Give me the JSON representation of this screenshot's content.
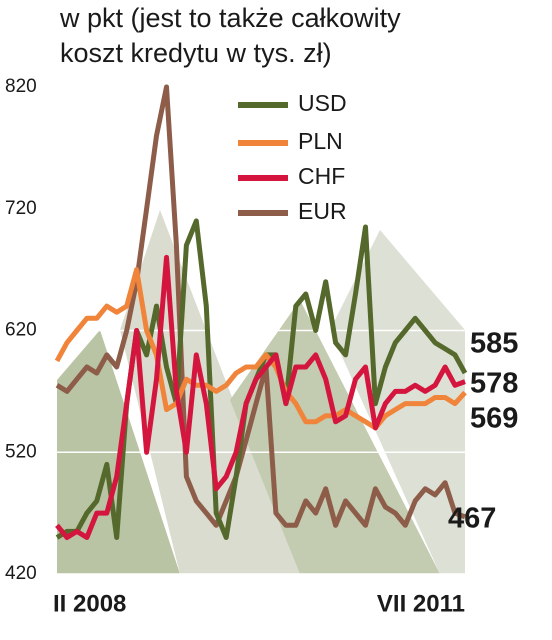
{
  "chart_data": {
    "type": "line",
    "title": [
      "w pkt (jest to także całkowity",
      "koszt kredytu w tys. zł)"
    ],
    "categories": [
      "II 2008",
      null,
      null,
      null,
      null,
      null,
      null,
      null,
      null,
      null,
      null,
      null,
      null,
      null,
      null,
      null,
      null,
      null,
      null,
      null,
      null,
      null,
      null,
      null,
      null,
      null,
      null,
      null,
      null,
      null,
      null,
      null,
      null,
      null,
      null,
      null,
      null,
      null,
      null,
      null,
      null,
      "VII 2011"
    ],
    "series": [
      {
        "name": "USD",
        "color": "#55692c",
        "values": [
          450,
          455,
          455,
          470,
          480,
          510,
          450,
          560,
          620,
          600,
          640,
          590,
          560,
          690,
          710,
          640,
          470,
          450,
          500,
          560,
          580,
          600,
          600,
          560,
          640,
          650,
          620,
          660,
          610,
          600,
          650,
          705,
          560,
          590,
          610,
          620,
          630,
          620,
          610,
          605,
          600,
          585
        ]
      },
      {
        "name": "PLN",
        "color": "#f0843a",
        "values": [
          595,
          610,
          620,
          630,
          630,
          640,
          635,
          640,
          670,
          620,
          600,
          555,
          560,
          580,
          575,
          575,
          570,
          575,
          585,
          590,
          590,
          600,
          590,
          570,
          560,
          545,
          545,
          550,
          550,
          555,
          550,
          545,
          540,
          550,
          555,
          560,
          560,
          560,
          565,
          565,
          560,
          569
        ]
      },
      {
        "name": "CHF",
        "color": "#d4163f",
        "values": [
          460,
          450,
          455,
          450,
          470,
          470,
          500,
          560,
          620,
          520,
          580,
          680,
          570,
          520,
          600,
          560,
          490,
          500,
          520,
          560,
          580,
          590,
          600,
          560,
          590,
          590,
          600,
          580,
          545,
          550,
          580,
          590,
          540,
          560,
          570,
          570,
          575,
          570,
          575,
          590,
          575,
          578
        ]
      },
      {
        "name": "EUR",
        "color": "#8d5d4a",
        "values": [
          575,
          570,
          580,
          590,
          585,
          600,
          590,
          620,
          660,
          720,
          780,
          820,
          690,
          500,
          480,
          470,
          460,
          480,
          500,
          530,
          560,
          590,
          470,
          460,
          460,
          480,
          470,
          490,
          460,
          480,
          470,
          460,
          490,
          475,
          470,
          460,
          480,
          490,
          485,
          495,
          470,
          467
        ]
      }
    ],
    "ylim": [
      420,
      820
    ],
    "yticks": [
      420,
      520,
      620,
      720,
      820
    ],
    "grid": true
  }
}
